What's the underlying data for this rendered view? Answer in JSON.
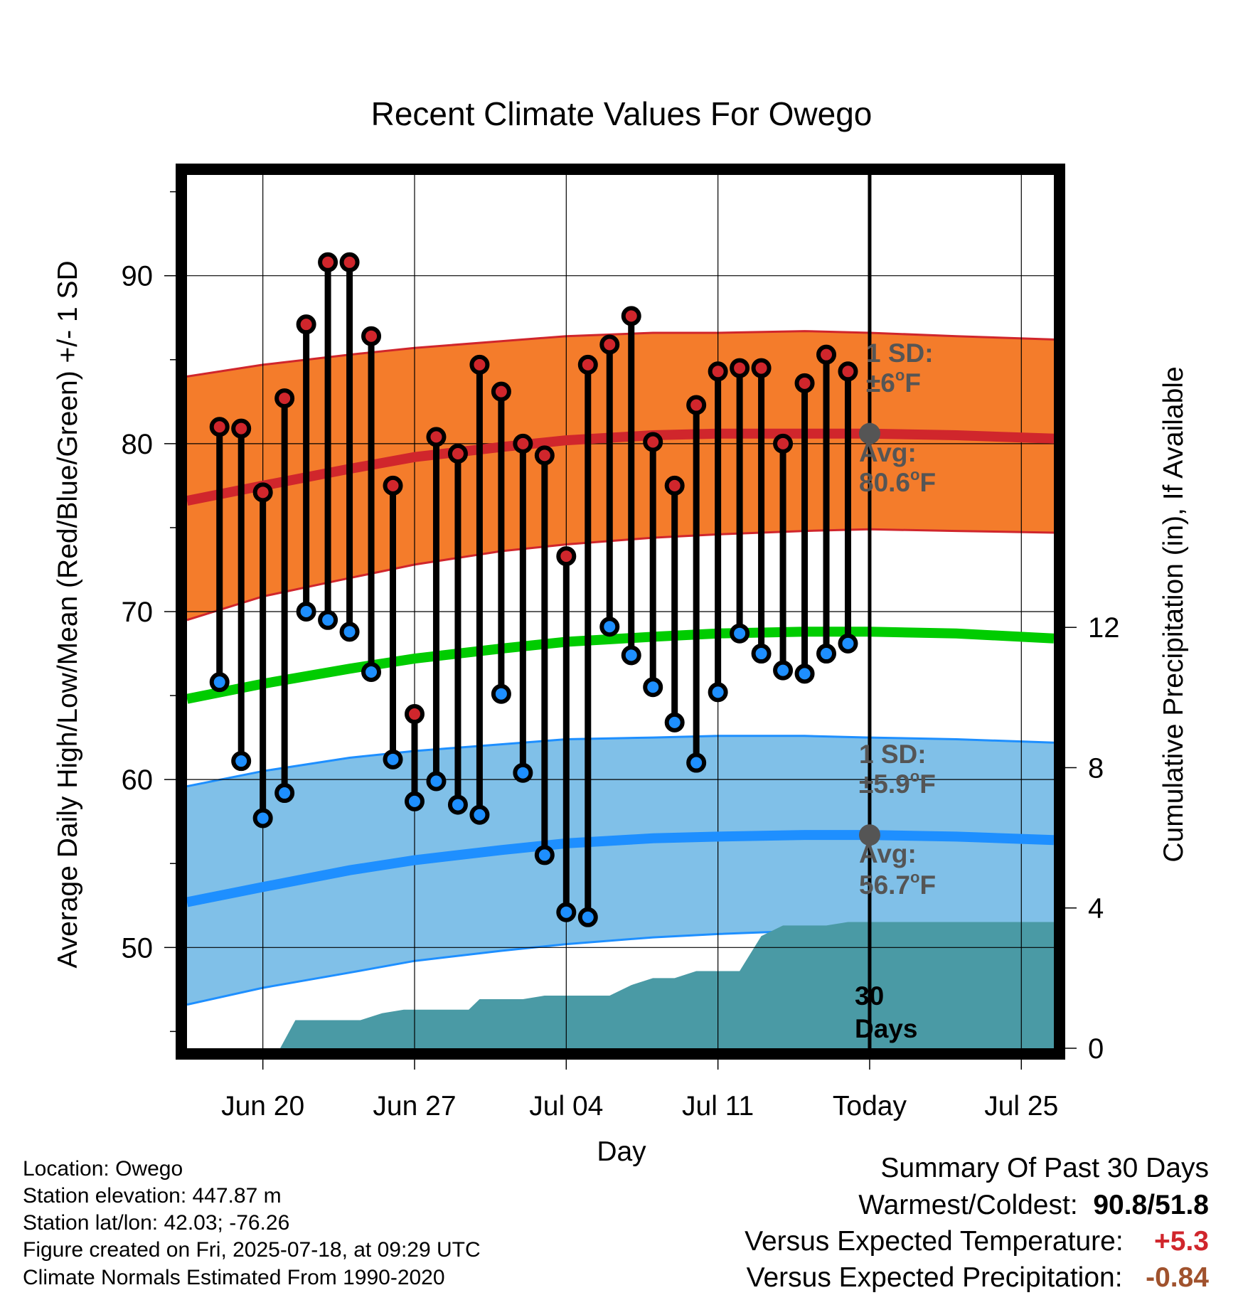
{
  "title": "Recent Climate Values For Owego",
  "y_axis_label": "Average Daily High/Low/Mean (Red/Blue/Green) +/- 1 SD",
  "y2_axis_label": "Cumulative Precipitation (in), If Available",
  "x_axis_label": "Day",
  "annotations": {
    "high_sd_label": "1 SD:",
    "high_sd_value": "±6",
    "high_avg_label": "Avg:",
    "high_avg_value": "80.6",
    "low_sd_label": "1 SD:",
    "low_sd_value": "±5.9",
    "low_avg_label": "Avg:",
    "low_avg_value": "56.7",
    "unit": "F",
    "degree": "o",
    "days_count": "30",
    "days_word": "Days"
  },
  "station_info": {
    "location": "Location: Owego",
    "elevation": "Station elevation: 447.87 m",
    "latlon": "Station lat/lon: 42.03; -76.26",
    "created": "Figure created on Fri, 2025-07-18, at 09:29 UTC",
    "normals": "Climate Normals Estimated From 1990-2020"
  },
  "summary": {
    "heading": "Summary Of Past 30 Days",
    "warmest_coldest_label": "Warmest/Coldest:",
    "warmest": "90.8",
    "slash": "/",
    "coldest": "51.8",
    "temp_label": "Versus Expected Temperature:",
    "temp_value": "+5.3",
    "precip_label": "Versus Expected Precipitation:",
    "precip_value": "-0.84"
  },
  "colors": {
    "high_band": "#f47c2b",
    "high_line": "#d0262c",
    "low_band": "#80c0e8",
    "low_line": "#1e8fff",
    "mean_line": "#00cc00",
    "precip": "#4a9aa5",
    "high_dot": "#d0262c",
    "low_dot": "#1e8fff",
    "annotation_text": "#555555"
  },
  "chart_data": {
    "type": "line",
    "x_ticks": [
      "Jun 20",
      "Jun 27",
      "Jul 04",
      "Jul 11",
      "Today",
      "Jul 25"
    ],
    "x_tick_days": [
      3,
      10,
      17,
      24,
      31,
      38
    ],
    "x_range_days": [
      -0.5,
      39.5
    ],
    "today_day": 31,
    "ylim": [
      44,
      96
    ],
    "y_ticks": [
      50,
      60,
      70,
      80,
      90
    ],
    "y2lim": [
      0,
      24.9
    ],
    "y2_ticks": [
      0,
      4,
      8,
      12
    ],
    "daily_days": [
      1,
      2,
      3,
      4,
      5,
      6,
      7,
      8,
      9,
      10,
      11,
      12,
      13,
      14,
      15,
      16,
      17,
      18,
      19,
      20,
      21,
      22,
      23,
      24,
      25,
      26,
      27,
      28,
      29,
      30
    ],
    "daily_high": [
      81.0,
      80.9,
      77.1,
      82.7,
      87.1,
      90.8,
      90.8,
      86.4,
      77.5,
      63.9,
      80.4,
      79.4,
      84.7,
      83.1,
      80.0,
      79.3,
      73.3,
      84.7,
      85.9,
      87.6,
      80.1,
      77.5,
      82.3,
      84.3,
      84.5,
      84.5,
      80.0,
      83.6,
      85.3,
      84.3
    ],
    "daily_low": [
      65.8,
      61.1,
      57.7,
      59.2,
      70.0,
      69.5,
      68.8,
      66.4,
      61.2,
      58.7,
      59.9,
      58.5,
      57.9,
      65.1,
      60.4,
      55.5,
      52.1,
      51.8,
      69.1,
      67.4,
      65.5,
      63.4,
      61.0,
      65.2,
      68.7,
      67.5,
      66.5,
      66.3,
      67.5,
      68.1
    ],
    "normal_days": [
      -0.5,
      3,
      7,
      10,
      14,
      17,
      21,
      24,
      28,
      31,
      35,
      39.5
    ],
    "normal_high": [
      76.6,
      77.5,
      78.5,
      79.2,
      79.8,
      80.2,
      80.5,
      80.6,
      80.6,
      80.6,
      80.5,
      80.3
    ],
    "normal_high_upper": [
      84.0,
      84.7,
      85.3,
      85.7,
      86.1,
      86.4,
      86.6,
      86.6,
      86.7,
      86.6,
      86.4,
      86.2
    ],
    "normal_high_lower": [
      69.5,
      70.9,
      72.0,
      72.8,
      73.6,
      74.0,
      74.4,
      74.6,
      74.8,
      74.9,
      74.8,
      74.7
    ],
    "normal_mean": [
      64.8,
      65.7,
      66.6,
      67.2,
      67.8,
      68.2,
      68.5,
      68.7,
      68.8,
      68.8,
      68.7,
      68.4
    ],
    "normal_low": [
      52.7,
      53.6,
      54.6,
      55.2,
      55.8,
      56.2,
      56.5,
      56.6,
      56.7,
      56.7,
      56.6,
      56.4
    ],
    "normal_low_upper": [
      59.6,
      60.5,
      61.3,
      61.7,
      62.1,
      62.4,
      62.5,
      62.6,
      62.6,
      62.5,
      62.4,
      62.2
    ],
    "normal_low_lower": [
      46.6,
      47.6,
      48.5,
      49.2,
      49.8,
      50.2,
      50.6,
      50.8,
      51.0,
      51.0,
      51.1,
      51.2
    ],
    "precip_days": [
      -0.5,
      3.8,
      4.5,
      5.5,
      7.5,
      8.5,
      9.5,
      10.5,
      12.5,
      13,
      15,
      16,
      17,
      18,
      19,
      20,
      21,
      22,
      23,
      24,
      25,
      26,
      27,
      28,
      29,
      30,
      31,
      39.5
    ],
    "precip_in": [
      0,
      0,
      0.8,
      0.8,
      0.8,
      1.0,
      1.1,
      1.1,
      1.1,
      1.4,
      1.4,
      1.5,
      1.5,
      1.5,
      1.5,
      1.8,
      2.0,
      2.0,
      2.2,
      2.2,
      2.2,
      3.2,
      3.5,
      3.5,
      3.5,
      3.6,
      3.6,
      3.6
    ]
  }
}
